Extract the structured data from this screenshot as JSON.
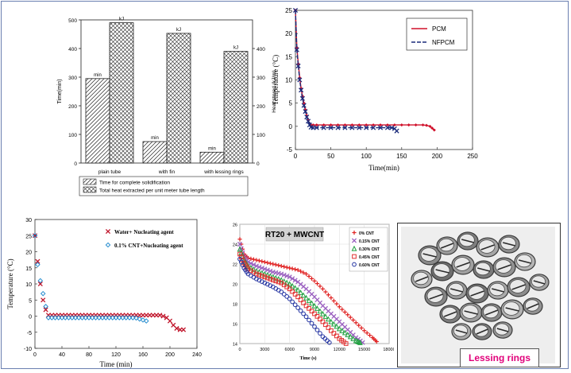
{
  "chart_data": [
    {
      "type": "bar",
      "categories": [
        "plain tube",
        "with fin",
        "with lessing rings"
      ],
      "series": [
        {
          "name": "Time for complete solidification",
          "values": [
            295,
            75,
            38
          ],
          "bar_label": "min",
          "axis": "left"
        },
        {
          "name": "Total heat extracted per unit meter tube length",
          "values": [
            490,
            453,
            390
          ],
          "bar_label": "kJ",
          "axis": "right"
        }
      ],
      "ylabel": "Time(min)",
      "y2label": "Heat stored (kJ/m)",
      "ylim": [
        0,
        500
      ],
      "yticks": [
        "0",
        "100",
        "200",
        "300",
        "400",
        "500"
      ],
      "y2ticks": [
        "0",
        "100",
        "200",
        "300",
        "400"
      ],
      "legend": "bottom"
    },
    {
      "type": "line",
      "xlabel": "Time(min)",
      "ylabel": "Temperature (°C)",
      "xlim": [
        0,
        250
      ],
      "ylim": [
        -5,
        25
      ],
      "xticks": [
        "0",
        "50",
        "100",
        "150",
        "200",
        "250"
      ],
      "yticks": [
        "-5",
        "0",
        "5",
        "10",
        "15",
        "20",
        "25"
      ],
      "legend": "top-right",
      "series": [
        {
          "name": "PCM",
          "color": "#d0102a",
          "x": [
            0,
            2,
            4,
            6,
            8,
            10,
            12,
            14,
            16,
            18,
            20,
            22,
            25,
            30,
            40,
            50,
            60,
            70,
            80,
            90,
            100,
            110,
            120,
            130,
            140,
            150,
            160,
            170,
            180,
            185,
            190,
            193,
            196
          ],
          "y": [
            25,
            17,
            13.5,
            10.5,
            8.2,
            6.5,
            5,
            3.6,
            2.3,
            1.3,
            0.6,
            0.3,
            0.3,
            0.3,
            0.3,
            0.3,
            0.3,
            0.3,
            0.3,
            0.3,
            0.3,
            0.3,
            0.3,
            0.3,
            0.3,
            0.3,
            0.3,
            0.3,
            0.3,
            0.2,
            0,
            -0.4,
            -0.8
          ]
        },
        {
          "name": "NFPCM",
          "color": "#1a2a7a",
          "x": [
            0,
            2,
            4,
            6,
            8,
            10,
            12,
            14,
            16,
            18,
            20,
            22,
            25,
            30,
            40,
            50,
            60,
            70,
            80,
            90,
            100,
            110,
            120,
            130,
            136,
            140,
            143
          ],
          "y": [
            25,
            16.5,
            13,
            10,
            7.8,
            6,
            4.5,
            3.2,
            2,
            1.1,
            0.3,
            -0.2,
            -0.3,
            -0.3,
            -0.3,
            -0.3,
            -0.3,
            -0.3,
            -0.3,
            -0.3,
            -0.3,
            -0.3,
            -0.3,
            -0.3,
            -0.3,
            -0.5,
            -1.0
          ]
        }
      ]
    },
    {
      "type": "scatter",
      "xlabel": "Time (min)",
      "ylabel": "Temperature (°C)",
      "xlim": [
        0,
        240
      ],
      "ylim": [
        -10,
        30
      ],
      "xticks": [
        "0",
        "40",
        "80",
        "120",
        "160",
        "200",
        "240"
      ],
      "yticks": [
        "-10",
        "-5",
        "0",
        "5",
        "10",
        "15",
        "20",
        "25",
        "30"
      ],
      "legend": "top-right",
      "series": [
        {
          "name": "Water+ Nucleating agent",
          "color": "#c0142a",
          "marker": "x",
          "x": [
            0,
            4,
            8,
            12,
            16,
            20,
            25,
            30,
            35,
            40,
            45,
            50,
            55,
            60,
            65,
            70,
            75,
            80,
            85,
            90,
            95,
            100,
            105,
            110,
            115,
            120,
            125,
            130,
            135,
            140,
            145,
            150,
            155,
            160,
            165,
            170,
            175,
            180,
            185,
            190,
            195,
            200,
            205,
            210,
            215,
            220
          ],
          "y": [
            25,
            17,
            10,
            5,
            2,
            0.3,
            0.3,
            0.3,
            0.3,
            0.3,
            0.3,
            0.3,
            0.3,
            0.3,
            0.3,
            0.3,
            0.3,
            0.3,
            0.3,
            0.3,
            0.3,
            0.3,
            0.3,
            0.3,
            0.3,
            0.3,
            0.3,
            0.3,
            0.3,
            0.3,
            0.3,
            0.3,
            0.3,
            0.3,
            0.3,
            0.3,
            0.3,
            0.3,
            0.3,
            0,
            -0.5,
            -1.5,
            -2.8,
            -3.8,
            -4.2,
            -4.2
          ]
        },
        {
          "name": "0.1% CNT+Nucleating agent",
          "color": "#2a8fd0",
          "marker": "diamond",
          "x": [
            0,
            4,
            8,
            12,
            16,
            20,
            25,
            30,
            35,
            40,
            45,
            50,
            55,
            60,
            65,
            70,
            75,
            80,
            85,
            90,
            95,
            100,
            105,
            110,
            115,
            120,
            125,
            130,
            135,
            140,
            145,
            150,
            155,
            160,
            165
          ],
          "y": [
            25,
            16,
            11,
            7,
            3,
            -0.5,
            -0.5,
            -0.5,
            -0.5,
            -0.5,
            -0.5,
            -0.5,
            -0.5,
            -0.5,
            -0.5,
            -0.5,
            -0.5,
            -0.5,
            -0.5,
            -0.5,
            -0.5,
            -0.5,
            -0.5,
            -0.5,
            -0.5,
            -0.5,
            -0.5,
            -0.5,
            -0.5,
            -0.5,
            -0.5,
            -0.6,
            -0.9,
            -1.2,
            -1.5
          ]
        }
      ]
    },
    {
      "type": "scatter",
      "title": "RT20 + MWCNT",
      "xlabel": "Time (s)",
      "ylim": [
        14,
        24
      ],
      "xlim": [
        0,
        18000
      ],
      "xticks": [
        "0",
        "3000",
        "6000",
        "9000",
        "12000",
        "15000",
        "18000"
      ],
      "yticks": [
        "14",
        "16",
        "18",
        "20",
        "22",
        "24",
        "26"
      ],
      "legend": "top-right",
      "series": [
        {
          "name": "0% CNT",
          "color": "#e02020",
          "marker": "plus",
          "x": [
            0,
            500,
            1000,
            2000,
            3000,
            4000,
            5000,
            6000,
            7000,
            8000,
            9000,
            10000,
            11000,
            12000,
            13000,
            14000,
            15000,
            16000,
            16500
          ],
          "y": [
            24.5,
            23.0,
            22.6,
            22.4,
            22.2,
            22.0,
            21.8,
            21.6,
            21.4,
            21.0,
            20.3,
            19.5,
            18.6,
            17.7,
            16.9,
            16.1,
            15.3,
            14.6,
            14.2
          ]
        },
        {
          "name": "0.15% CNT",
          "color": "#9a60c0",
          "marker": "x",
          "x": [
            0,
            500,
            1000,
            2000,
            3000,
            4000,
            5000,
            6000,
            7000,
            8000,
            9000,
            10000,
            11000,
            12000,
            13000,
            14000,
            14800
          ],
          "y": [
            24.0,
            22.7,
            22.2,
            21.8,
            21.5,
            21.2,
            21.0,
            20.7,
            20.2,
            19.5,
            18.7,
            17.8,
            17.0,
            16.2,
            15.4,
            14.6,
            14.1
          ]
        },
        {
          "name": "0.30% CNT",
          "color": "#20a040",
          "marker": "triangle",
          "x": [
            0,
            500,
            1000,
            2000,
            3000,
            4000,
            5000,
            6000,
            7000,
            8000,
            9000,
            10000,
            11000,
            12000,
            13000,
            14000,
            14500
          ],
          "y": [
            23.5,
            22.4,
            21.8,
            21.3,
            21.0,
            20.7,
            20.4,
            20.0,
            19.4,
            18.6,
            17.8,
            17.0,
            16.2,
            15.5,
            14.9,
            14.3,
            14.1
          ]
        },
        {
          "name": "0.45% CNT",
          "color": "#e03030",
          "marker": "square",
          "x": [
            0,
            500,
            1000,
            2000,
            3000,
            4000,
            5000,
            6000,
            7000,
            8000,
            9000,
            10000,
            11000,
            12000,
            12800
          ],
          "y": [
            23.0,
            22.1,
            21.5,
            21.0,
            20.7,
            20.4,
            20.1,
            19.5,
            18.7,
            17.8,
            17.0,
            16.2,
            15.3,
            14.5,
            14.0
          ]
        },
        {
          "name": "0.60% CNT",
          "color": "#2030a0",
          "marker": "circle",
          "x": [
            0,
            500,
            1000,
            2000,
            3000,
            4000,
            5000,
            6000,
            7000,
            8000,
            9000,
            10000,
            10800
          ],
          "y": [
            22.5,
            21.6,
            21.0,
            20.5,
            20.1,
            19.7,
            19.2,
            18.5,
            17.6,
            16.7,
            15.7,
            14.7,
            14.1
          ]
        }
      ]
    }
  ],
  "photo": {
    "caption": "Lessing rings",
    "caption_color": "#e1007a"
  }
}
